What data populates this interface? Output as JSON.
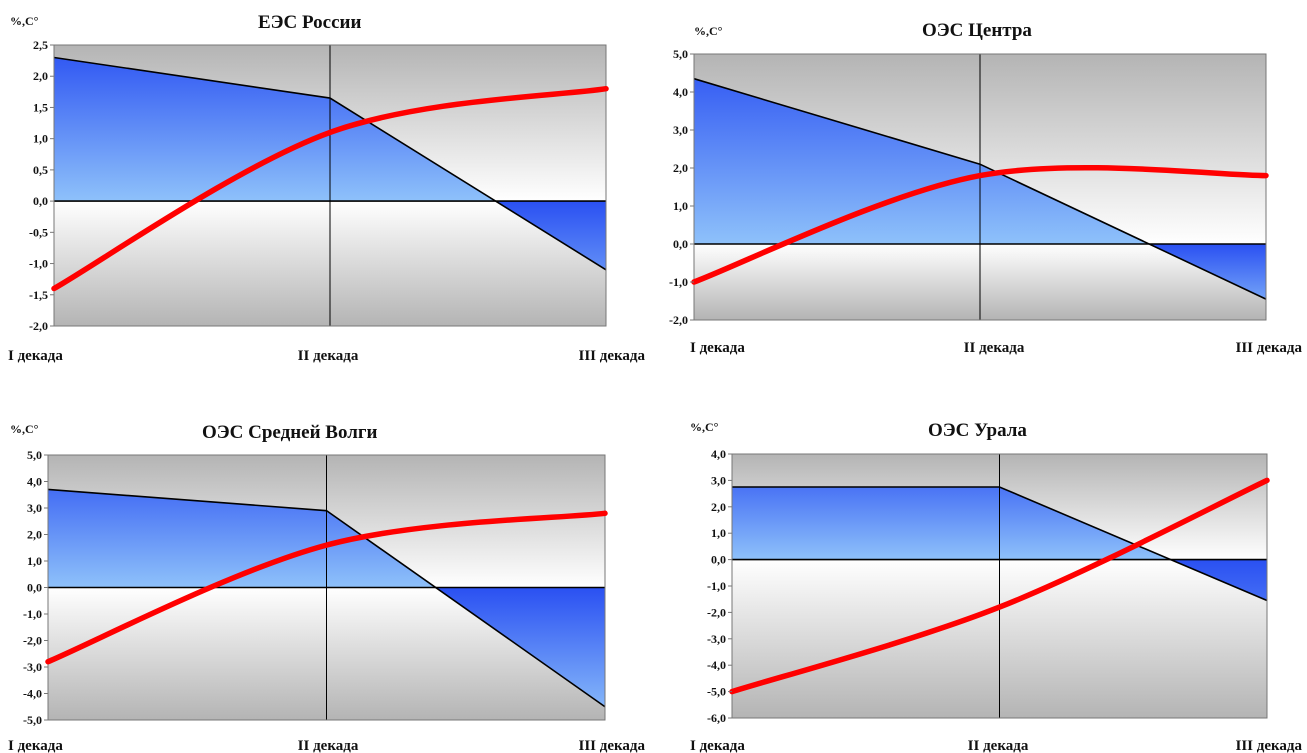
{
  "chart_data": [
    {
      "type": "area",
      "title": "ЕЭС России",
      "ylabel": "%,С°",
      "categories": [
        "I декада",
        "II декада",
        "III декада"
      ],
      "ylim": [
        -2.0,
        2.5
      ],
      "ytick_labels": [
        "2,5",
        "2,0",
        "1,5",
        "1,0",
        "0,5",
        "0,0",
        "-0,5",
        "-1,0",
        "-1,5",
        "-2,0"
      ],
      "series": [
        {
          "type": "area",
          "values": [
            2.3,
            1.65,
            -1.1
          ]
        },
        {
          "type": "line",
          "values": [
            -1.4,
            1.1,
            1.8
          ]
        }
      ],
      "grid": false,
      "colors": {
        "area": "#3a63f0",
        "line": "#ff0000"
      }
    },
    {
      "type": "area",
      "title": "ОЭС Центра",
      "ylabel": "%,С°",
      "categories": [
        "I декада",
        "II декада",
        "III декада"
      ],
      "ylim": [
        -2.0,
        5.0
      ],
      "ytick_labels": [
        "5,0",
        "4,0",
        "3,0",
        "2,0",
        "1,0",
        "0,0",
        "-1,0",
        "-2,0"
      ],
      "series": [
        {
          "type": "area",
          "values": [
            4.35,
            2.1,
            -1.45
          ]
        },
        {
          "type": "line",
          "values": [
            -1.0,
            1.8,
            1.8
          ]
        }
      ],
      "grid": false,
      "colors": {
        "area": "#3a63f0",
        "line": "#ff0000"
      }
    },
    {
      "type": "area",
      "title": "ОЭС Средней Волги",
      "ylabel": "%,С°",
      "categories": [
        "I декада",
        "II декада",
        "III декада"
      ],
      "ylim": [
        -5.0,
        5.0
      ],
      "ytick_labels": [
        "5,0",
        "4,0",
        "3,0",
        "2,0",
        "1,0",
        "0,0",
        "-1,0",
        "-2,0",
        "-3,0",
        "-4,0",
        "-5,0"
      ],
      "series": [
        {
          "type": "area",
          "values": [
            3.7,
            2.9,
            -4.5
          ]
        },
        {
          "type": "line",
          "values": [
            -2.8,
            1.6,
            2.8
          ]
        }
      ],
      "grid": false,
      "colors": {
        "area": "#3a63f0",
        "line": "#ff0000"
      }
    },
    {
      "type": "area",
      "title": "ОЭС Урала",
      "ylabel": "%,С°",
      "categories": [
        "I декада",
        "II декада",
        "III декада"
      ],
      "ylim": [
        -6.0,
        4.0
      ],
      "ytick_labels": [
        "4,0",
        "3,0",
        "2,0",
        "1,0",
        "0,0",
        "-1,0",
        "-2,0",
        "-3,0",
        "-4,0",
        "-5,0",
        "-6,0"
      ],
      "series": [
        {
          "type": "area",
          "values": [
            2.75,
            2.75,
            -1.55
          ]
        },
        {
          "type": "line",
          "values": [
            -5.0,
            -1.8,
            3.0
          ]
        }
      ],
      "grid": false,
      "colors": {
        "area": "#3a63f0",
        "line": "#ff0000"
      }
    }
  ]
}
